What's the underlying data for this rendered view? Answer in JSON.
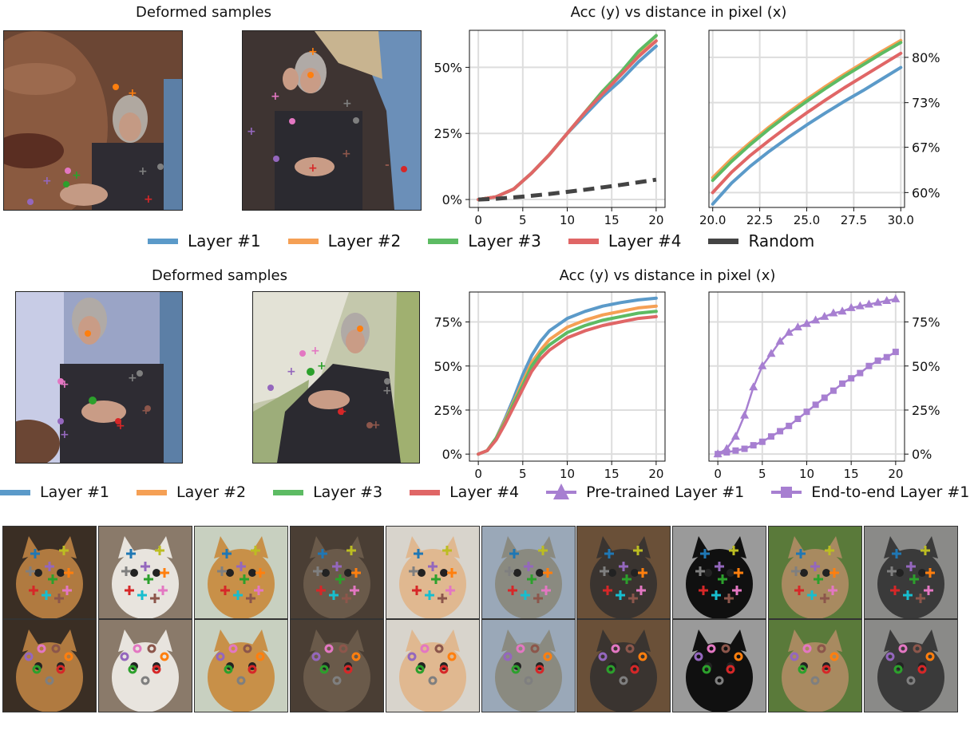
{
  "section_top": {
    "images_title": "Deformed samples",
    "chart_title": "Acc (y) vs distance in pixel (x)",
    "legend": [
      {
        "label": "Layer #1",
        "color": "#5b9ac9"
      },
      {
        "label": "Layer #2",
        "color": "#f5a055"
      },
      {
        "label": "Layer #3",
        "color": "#5dbb63"
      },
      {
        "label": "Layer #4",
        "color": "#e06666"
      },
      {
        "label": "Random",
        "color": "#444444"
      }
    ]
  },
  "section_mid": {
    "images_title": "Deformed samples",
    "chart_title": "Acc (y) vs distance in pixel (x)",
    "legend": [
      {
        "label": "Layer #1",
        "color": "#5b9ac9",
        "marker": "line"
      },
      {
        "label": "Layer #2",
        "color": "#f5a055",
        "marker": "line"
      },
      {
        "label": "Layer #3",
        "color": "#5dbb63",
        "marker": "line"
      },
      {
        "label": "Layer #4",
        "color": "#e06666",
        "marker": "line"
      },
      {
        "label": "Pre-trained Layer #1",
        "color": "#a77fd1",
        "marker": "triangle"
      },
      {
        "label": "End-to-end Layer #1",
        "color": "#a77fd1",
        "marker": "square"
      }
    ]
  },
  "chart_data": [
    {
      "type": "line",
      "id": "top-left",
      "xlim": [
        -1,
        21
      ],
      "ylim": [
        -0.03,
        0.64
      ],
      "xticks": [
        0,
        5,
        10,
        15,
        20
      ],
      "xtick_labels": [
        "0",
        "5",
        "10",
        "15",
        "20"
      ],
      "yticks": [
        0,
        0.25,
        0.5
      ],
      "ytick_labels": [
        "0%",
        "25%",
        "50%"
      ],
      "grid": true,
      "series": [
        {
          "name": "Layer #1",
          "color": "#5b9ac9",
          "x": [
            0,
            2,
            4,
            6,
            8,
            10,
            12,
            14,
            16,
            18,
            20
          ],
          "y": [
            0,
            0.01,
            0.04,
            0.1,
            0.17,
            0.25,
            0.32,
            0.39,
            0.45,
            0.52,
            0.58
          ]
        },
        {
          "name": "Layer #2",
          "color": "#f5a055",
          "x": [
            0,
            2,
            4,
            6,
            8,
            10,
            12,
            14,
            16,
            18,
            20
          ],
          "y": [
            0,
            0.01,
            0.04,
            0.1,
            0.17,
            0.25,
            0.33,
            0.41,
            0.48,
            0.55,
            0.62
          ]
        },
        {
          "name": "Layer #3",
          "color": "#5dbb63",
          "x": [
            0,
            2,
            4,
            6,
            8,
            10,
            12,
            14,
            16,
            18,
            20
          ],
          "y": [
            0,
            0.01,
            0.04,
            0.1,
            0.17,
            0.25,
            0.33,
            0.41,
            0.48,
            0.56,
            0.62
          ]
        },
        {
          "name": "Layer #4",
          "color": "#e06666",
          "x": [
            0,
            2,
            4,
            6,
            8,
            10,
            12,
            14,
            16,
            18,
            20
          ],
          "y": [
            0,
            0.01,
            0.04,
            0.1,
            0.17,
            0.25,
            0.33,
            0.4,
            0.47,
            0.54,
            0.6
          ]
        },
        {
          "name": "Random",
          "color": "#444444",
          "dashed": true,
          "x": [
            0,
            2,
            4,
            6,
            8,
            10,
            12,
            14,
            16,
            18,
            20
          ],
          "y": [
            0,
            0.003,
            0.008,
            0.014,
            0.021,
            0.029,
            0.037,
            0.046,
            0.055,
            0.065,
            0.075
          ]
        }
      ]
    },
    {
      "type": "line",
      "id": "top-right",
      "xlim": [
        19.8,
        30.2
      ],
      "ylim": [
        0.578,
        0.84
      ],
      "xticks": [
        20,
        22.5,
        25,
        27.5,
        30
      ],
      "xtick_labels": [
        "20.0",
        "22.5",
        "25.0",
        "27.5",
        "30.0"
      ],
      "yticks": [
        0.6,
        0.667,
        0.733,
        0.8
      ],
      "ytick_labels": [
        "60%",
        "67%",
        "73%",
        "80%"
      ],
      "y_axis_side": "right",
      "grid": true,
      "series": [
        {
          "name": "Layer #1",
          "color": "#5b9ac9",
          "x": [
            20,
            21,
            22,
            23,
            24,
            25,
            26,
            27,
            28,
            29,
            30
          ],
          "y": [
            0.583,
            0.614,
            0.639,
            0.661,
            0.681,
            0.7,
            0.718,
            0.735,
            0.751,
            0.768,
            0.785
          ]
        },
        {
          "name": "Layer #2",
          "color": "#f5a055",
          "x": [
            20,
            21,
            22,
            23,
            24,
            25,
            26,
            27,
            28,
            29,
            30
          ],
          "y": [
            0.622,
            0.65,
            0.674,
            0.697,
            0.718,
            0.738,
            0.757,
            0.775,
            0.792,
            0.809,
            0.825
          ]
        },
        {
          "name": "Layer #3",
          "color": "#5dbb63",
          "x": [
            20,
            21,
            22,
            23,
            24,
            25,
            26,
            27,
            28,
            29,
            30
          ],
          "y": [
            0.618,
            0.646,
            0.671,
            0.694,
            0.715,
            0.735,
            0.754,
            0.772,
            0.789,
            0.806,
            0.822
          ]
        },
        {
          "name": "Layer #4",
          "color": "#e06666",
          "x": [
            20,
            21,
            22,
            23,
            24,
            25,
            26,
            27,
            28,
            29,
            30
          ],
          "y": [
            0.6,
            0.63,
            0.655,
            0.677,
            0.698,
            0.718,
            0.737,
            0.755,
            0.772,
            0.789,
            0.806
          ]
        }
      ]
    },
    {
      "type": "line",
      "id": "mid-left",
      "xlim": [
        -1,
        21
      ],
      "ylim": [
        -0.04,
        0.92
      ],
      "xticks": [
        0,
        5,
        10,
        15,
        20
      ],
      "xtick_labels": [
        "0",
        "5",
        "10",
        "15",
        "20"
      ],
      "yticks": [
        0,
        0.25,
        0.5,
        0.75
      ],
      "ytick_labels": [
        "0%",
        "25%",
        "50%",
        "75%"
      ],
      "grid": true,
      "series": [
        {
          "name": "Layer #1",
          "color": "#5b9ac9",
          "x": [
            0,
            1,
            2,
            3,
            4,
            5,
            6,
            7,
            8,
            10,
            12,
            14,
            16,
            18,
            20
          ],
          "y": [
            0,
            0.02,
            0.09,
            0.2,
            0.32,
            0.45,
            0.56,
            0.64,
            0.7,
            0.77,
            0.81,
            0.84,
            0.86,
            0.875,
            0.885
          ]
        },
        {
          "name": "Layer #2",
          "color": "#f5a055",
          "x": [
            0,
            1,
            2,
            3,
            4,
            5,
            6,
            7,
            8,
            10,
            12,
            14,
            16,
            18,
            20
          ],
          "y": [
            0,
            0.02,
            0.09,
            0.19,
            0.3,
            0.41,
            0.52,
            0.59,
            0.65,
            0.72,
            0.76,
            0.79,
            0.81,
            0.83,
            0.84
          ]
        },
        {
          "name": "Layer #3",
          "color": "#5dbb63",
          "x": [
            0,
            1,
            2,
            3,
            4,
            5,
            6,
            7,
            8,
            10,
            12,
            14,
            16,
            18,
            20
          ],
          "y": [
            0,
            0.02,
            0.09,
            0.18,
            0.29,
            0.39,
            0.5,
            0.57,
            0.62,
            0.69,
            0.73,
            0.76,
            0.78,
            0.8,
            0.81
          ]
        },
        {
          "name": "Layer #4",
          "color": "#e06666",
          "x": [
            0,
            1,
            2,
            3,
            4,
            5,
            6,
            7,
            8,
            10,
            12,
            14,
            16,
            18,
            20
          ],
          "y": [
            0,
            0.02,
            0.08,
            0.17,
            0.27,
            0.37,
            0.47,
            0.54,
            0.59,
            0.66,
            0.7,
            0.73,
            0.75,
            0.77,
            0.78
          ]
        }
      ]
    },
    {
      "type": "line",
      "id": "mid-right",
      "xlim": [
        -1,
        21
      ],
      "ylim": [
        -0.04,
        0.92
      ],
      "xticks": [
        0,
        5,
        10,
        15,
        20
      ],
      "xtick_labels": [
        "0",
        "5",
        "10",
        "15",
        "20"
      ],
      "yticks": [
        0,
        0.25,
        0.5,
        0.75
      ],
      "ytick_labels": [
        "0%",
        "25%",
        "50%",
        "75%"
      ],
      "y_axis_side": "right",
      "grid": true,
      "series": [
        {
          "name": "Pre-trained Layer #1",
          "color": "#a77fd1",
          "marker": "triangle",
          "x": [
            0,
            1,
            2,
            3,
            4,
            5,
            6,
            7,
            8,
            9,
            10,
            11,
            12,
            13,
            14,
            15,
            16,
            17,
            18,
            19,
            20
          ],
          "y": [
            0,
            0.03,
            0.1,
            0.22,
            0.38,
            0.5,
            0.57,
            0.64,
            0.69,
            0.72,
            0.74,
            0.76,
            0.78,
            0.8,
            0.81,
            0.83,
            0.84,
            0.85,
            0.86,
            0.87,
            0.88
          ]
        },
        {
          "name": "End-to-end Layer #1",
          "color": "#a77fd1",
          "marker": "square",
          "x": [
            0,
            1,
            2,
            3,
            4,
            5,
            6,
            7,
            8,
            9,
            10,
            11,
            12,
            13,
            14,
            15,
            16,
            17,
            18,
            19,
            20
          ],
          "y": [
            0,
            0.01,
            0.02,
            0.03,
            0.05,
            0.07,
            0.1,
            0.13,
            0.16,
            0.2,
            0.24,
            0.28,
            0.32,
            0.36,
            0.4,
            0.43,
            0.46,
            0.5,
            0.53,
            0.55,
            0.58
          ]
        }
      ]
    }
  ]
}
